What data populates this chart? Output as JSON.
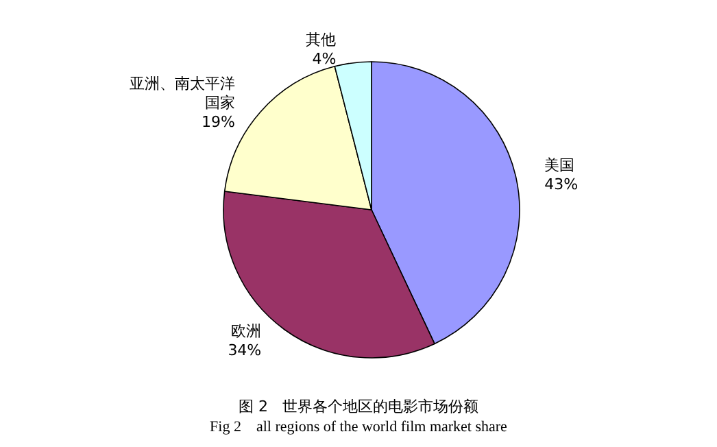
{
  "chart_data": {
    "type": "pie",
    "title": "图 2   世界各个地区的电影市场份额",
    "subtitle": "Fig 2    all regions of the world film market share",
    "categories": [
      "美国",
      "欧洲",
      "亚洲、南太平洋国家",
      "其他"
    ],
    "values": [
      43,
      34,
      19,
      4
    ],
    "colors": [
      "#9999ff",
      "#993366",
      "#ffffcc",
      "#ccffff"
    ],
    "value_labels": [
      "43%",
      "34%",
      "19%",
      "4%"
    ],
    "legend": false
  }
}
